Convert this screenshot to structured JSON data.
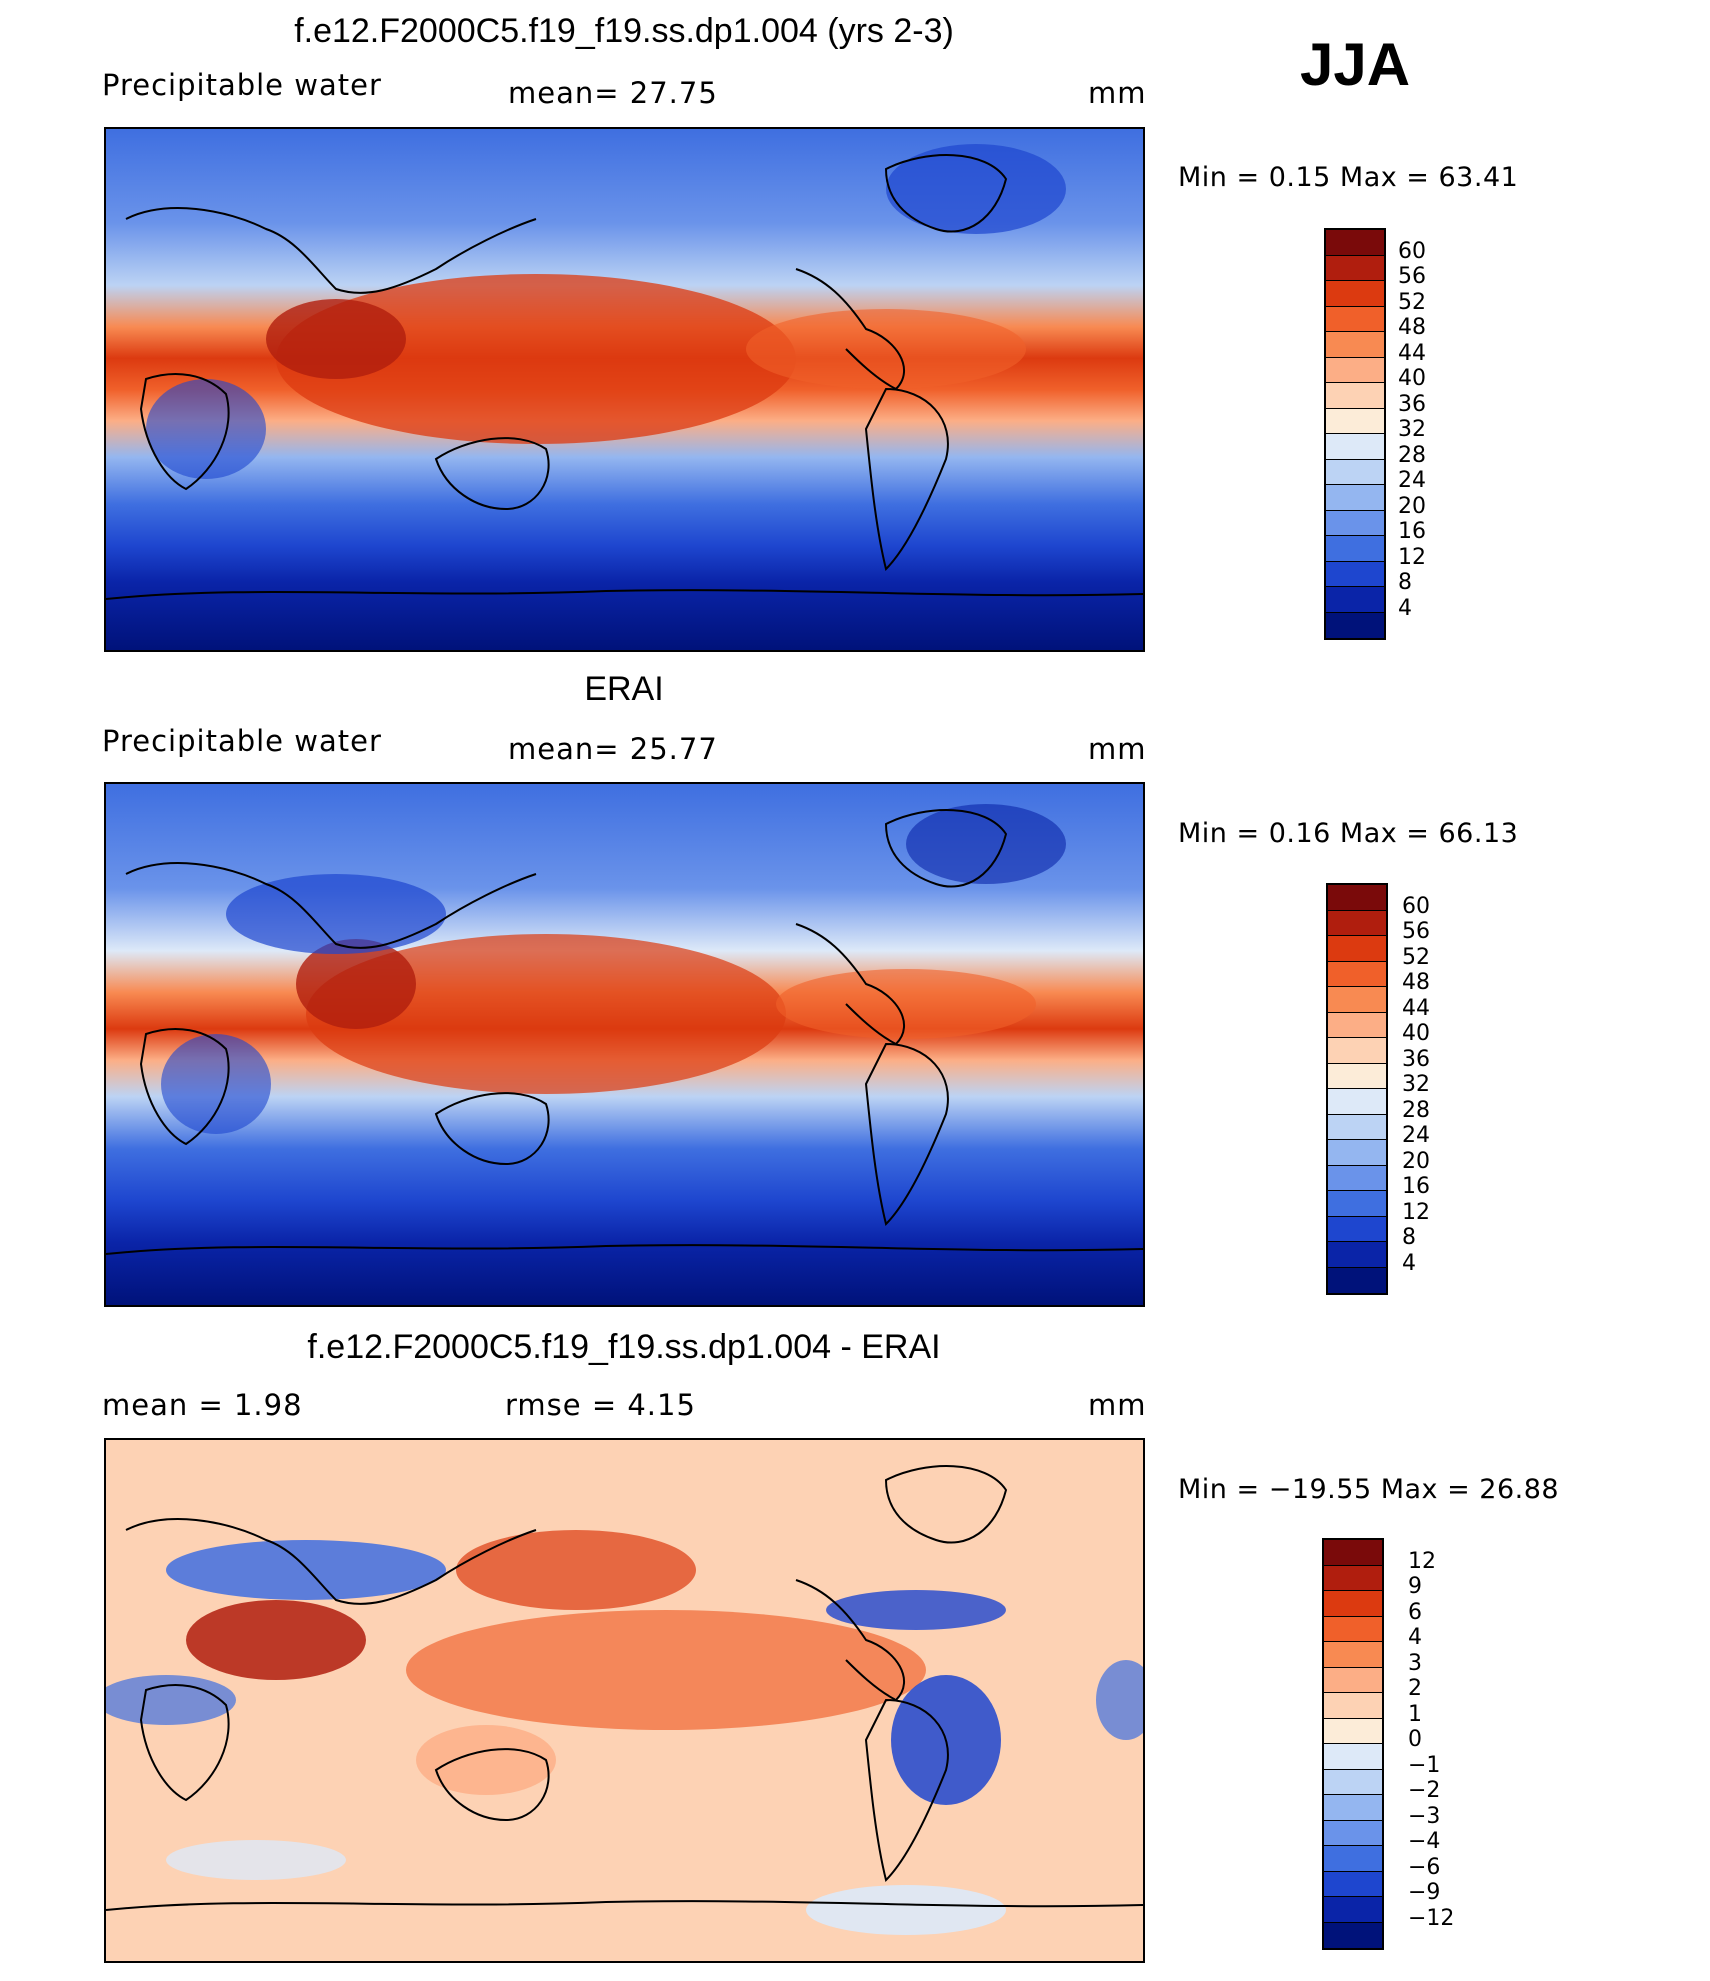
{
  "season": "JJA",
  "panels": [
    {
      "title": "f.e12.F2000C5.f19_f19.ss.dp1.004 (yrs 2-3)",
      "left_label": "Precipitable  water",
      "center_label": "mean=   27.75",
      "units": "mm",
      "minmax": "Min  =     0.15  Max  =    63.41",
      "colorbar_labels": [
        "60",
        "56",
        "52",
        "48",
        "44",
        "40",
        "36",
        "32",
        "28",
        "24",
        "20",
        "16",
        "12",
        "8",
        "4"
      ],
      "colorbar_colors": [
        "#7a0a0a",
        "#b01e0e",
        "#dc3a10",
        "#f0602a",
        "#f88a52",
        "#fcae86",
        "#fdd2b4",
        "#fcecd8",
        "#dde9f8",
        "#bcd3f4",
        "#94b6f0",
        "#6a93ea",
        "#3f6fe0",
        "#1e46cf",
        "#0a24a8",
        "#00127a"
      ]
    },
    {
      "title": "ERAI",
      "left_label": "Precipitable  water",
      "center_label": "mean=   25.77",
      "units": "mm",
      "minmax": "Min  =     0.16  Max  =    66.13",
      "colorbar_labels": [
        "60",
        "56",
        "52",
        "48",
        "44",
        "40",
        "36",
        "32",
        "28",
        "24",
        "20",
        "16",
        "12",
        "8",
        "4"
      ],
      "colorbar_colors": [
        "#7a0a0a",
        "#b01e0e",
        "#dc3a10",
        "#f0602a",
        "#f88a52",
        "#fcae86",
        "#fdd2b4",
        "#fcecd8",
        "#dde9f8",
        "#bcd3f4",
        "#94b6f0",
        "#6a93ea",
        "#3f6fe0",
        "#1e46cf",
        "#0a24a8",
        "#00127a"
      ]
    },
    {
      "title": "f.e12.F2000C5.f19_f19.ss.dp1.004 - ERAI",
      "left_label": "mean  =      1.98",
      "center_label": "rmse  =      4.15",
      "units": "mm",
      "minmax": "Min  = −19.55  Max  =    26.88",
      "colorbar_labels": [
        "12",
        "9",
        "6",
        "4",
        "3",
        "2",
        "1",
        "0",
        "−1",
        "−2",
        "−3",
        "−4",
        "−6",
        "−9",
        "−12"
      ],
      "colorbar_colors": [
        "#7a0a0a",
        "#b01e0e",
        "#dc3a10",
        "#f0602a",
        "#f88a52",
        "#fcae86",
        "#fdd2b4",
        "#fcecd8",
        "#dde9f8",
        "#bcd3f4",
        "#94b6f0",
        "#6a93ea",
        "#3f6fe0",
        "#1e46cf",
        "#0a24a8",
        "#00127a"
      ]
    }
  ]
}
